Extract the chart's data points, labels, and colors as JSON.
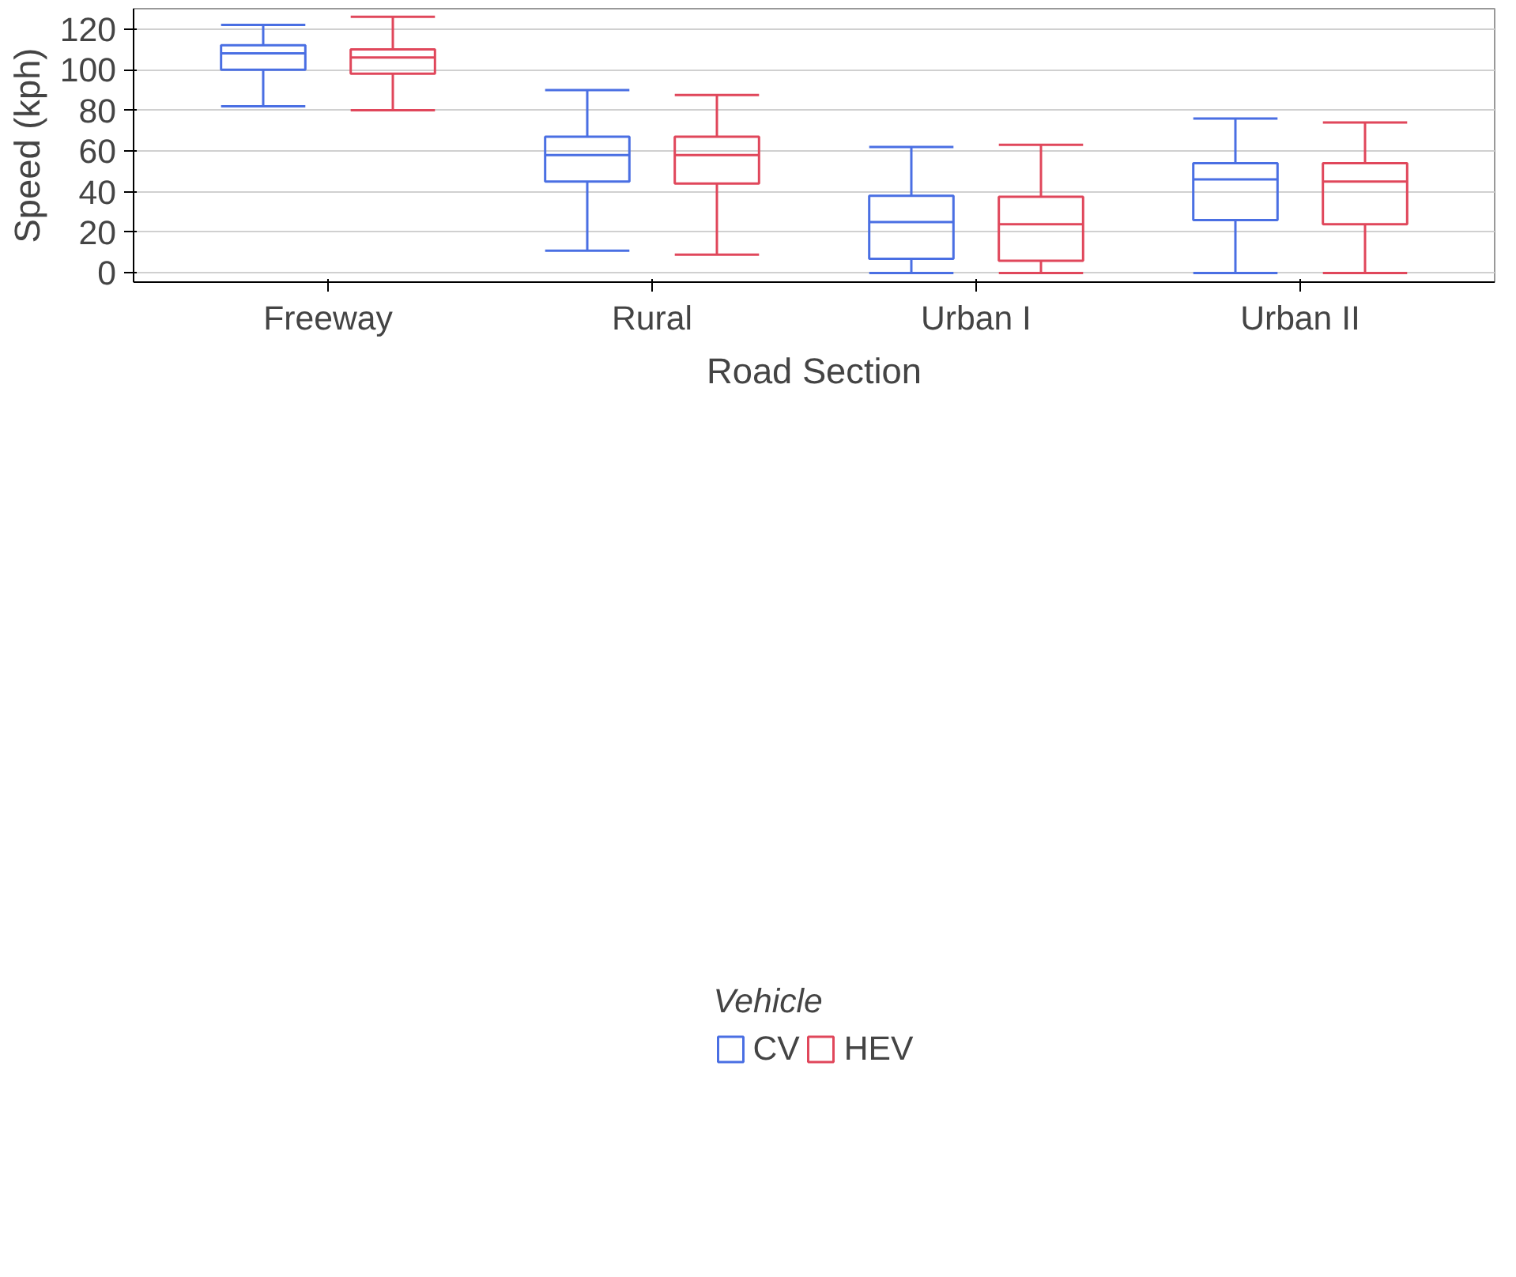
{
  "chart_data": {
    "type": "box",
    "xlabel": "Road Section",
    "ylabel": "Speed (kph)",
    "legend_title": "Vehicle",
    "legend": "bottom",
    "grid": "y",
    "categories": [
      "Freeway",
      "Rural",
      "Urban I",
      "Urban II"
    ],
    "ylim": [
      -4.5,
      130
    ],
    "yticks": [
      0,
      20,
      40,
      60,
      80,
      100,
      120
    ],
    "series": [
      {
        "name": "CV",
        "color": "#4a6fe3",
        "boxes": [
          {
            "low": 82,
            "q1": 100,
            "median": 108,
            "q3": 112,
            "high": 122
          },
          {
            "low": 11,
            "q1": 45,
            "median": 58,
            "q3": 67,
            "high": 90
          },
          {
            "low": 0,
            "q1": 7,
            "median": 25,
            "q3": 38,
            "high": 62
          },
          {
            "low": 0,
            "q1": 26,
            "median": 46,
            "q3": 54,
            "high": 76
          }
        ]
      },
      {
        "name": "HEV",
        "color": "#e0475b",
        "boxes": [
          {
            "low": 80,
            "q1": 98,
            "median": 106,
            "q3": 110,
            "high": 126
          },
          {
            "low": 9,
            "q1": 44,
            "median": 58,
            "q3": 67,
            "high": 87.5
          },
          {
            "low": 0,
            "q1": 6,
            "median": 24,
            "q3": 37.5,
            "high": 63
          },
          {
            "low": 0,
            "q1": 24,
            "median": 45,
            "q3": 54,
            "high": 74
          }
        ]
      }
    ]
  }
}
